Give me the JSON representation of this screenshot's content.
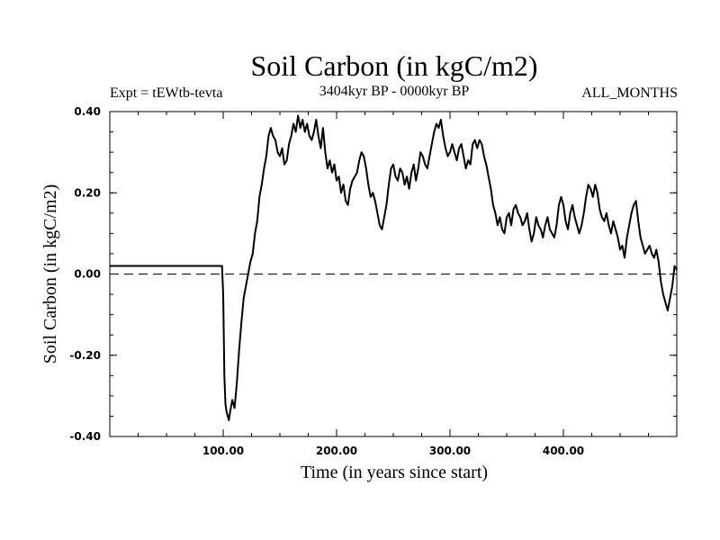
{
  "chart_data": {
    "type": "line",
    "title": "Soil Carbon (in kgC/m2)",
    "subtitle": "3404kyr BP - 0000kyr BP",
    "experiment_label": "Expt = tEWtb-tevta",
    "months_label": "ALL_MONTHS",
    "xlabel": "Time (in years since start)",
    "ylabel": "Soil Carbon (in kgC/m2)",
    "xlim": [
      0,
      500
    ],
    "ylim": [
      -0.4,
      0.4
    ],
    "x_ticks": [
      100,
      200,
      300,
      400
    ],
    "x_tick_labels": [
      "100.00",
      "200.00",
      "300.00",
      "400.00"
    ],
    "y_ticks": [
      -0.4,
      -0.2,
      0.0,
      0.2,
      0.4
    ],
    "y_tick_labels": [
      "-0.40",
      "-0.20",
      "0.00",
      "0.20",
      "0.40"
    ],
    "reference_line": {
      "y": 0.0,
      "style": "dashed"
    },
    "series": [
      {
        "name": "Soil Carbon",
        "color": "#000000",
        "x": [
          0,
          99,
          100,
          101,
          102,
          103,
          104,
          105,
          106,
          108,
          110,
          112,
          114,
          116,
          118,
          120,
          122,
          124,
          126,
          128,
          130,
          132,
          134,
          136,
          138,
          140,
          142,
          144,
          146,
          148,
          150,
          152,
          154,
          156,
          158,
          160,
          162,
          164,
          166,
          168,
          170,
          172,
          174,
          176,
          178,
          180,
          182,
          184,
          186,
          188,
          190,
          192,
          194,
          196,
          198,
          200,
          202,
          204,
          206,
          208,
          210,
          212,
          214,
          216,
          218,
          220,
          222,
          224,
          226,
          228,
          230,
          232,
          234,
          236,
          238,
          240,
          242,
          244,
          246,
          248,
          250,
          252,
          254,
          256,
          258,
          260,
          262,
          264,
          266,
          268,
          270,
          272,
          274,
          276,
          278,
          280,
          282,
          284,
          286,
          288,
          290,
          292,
          294,
          296,
          298,
          300,
          302,
          304,
          306,
          308,
          310,
          312,
          314,
          316,
          318,
          320,
          322,
          324,
          326,
          328,
          330,
          332,
          334,
          336,
          338,
          340,
          342,
          344,
          346,
          348,
          350,
          352,
          354,
          356,
          358,
          360,
          362,
          364,
          366,
          368,
          370,
          372,
          374,
          376,
          378,
          380,
          382,
          384,
          386,
          388,
          390,
          392,
          394,
          396,
          398,
          400,
          402,
          404,
          406,
          408,
          410,
          412,
          414,
          416,
          418,
          420,
          422,
          424,
          426,
          428,
          430,
          432,
          434,
          436,
          438,
          440,
          442,
          444,
          446,
          448,
          450,
          452,
          454,
          456,
          458,
          460,
          462,
          464,
          466,
          468,
          470,
          472,
          474,
          476,
          478,
          480,
          482,
          484,
          486,
          488,
          490,
          492,
          494,
          496,
          498,
          500
        ],
        "values": [
          0.02,
          0.02,
          -0.05,
          -0.25,
          -0.32,
          -0.34,
          -0.35,
          -0.36,
          -0.34,
          -0.31,
          -0.33,
          -0.27,
          -0.19,
          -0.12,
          -0.06,
          -0.03,
          0.0,
          0.03,
          0.05,
          0.1,
          0.13,
          0.19,
          0.22,
          0.26,
          0.29,
          0.34,
          0.36,
          0.34,
          0.33,
          0.3,
          0.29,
          0.31,
          0.27,
          0.28,
          0.32,
          0.34,
          0.37,
          0.35,
          0.39,
          0.36,
          0.38,
          0.35,
          0.37,
          0.34,
          0.33,
          0.35,
          0.38,
          0.34,
          0.31,
          0.36,
          0.3,
          0.26,
          0.28,
          0.25,
          0.27,
          0.23,
          0.24,
          0.2,
          0.22,
          0.18,
          0.17,
          0.21,
          0.23,
          0.24,
          0.25,
          0.28,
          0.3,
          0.29,
          0.26,
          0.22,
          0.19,
          0.2,
          0.18,
          0.15,
          0.12,
          0.11,
          0.14,
          0.17,
          0.22,
          0.26,
          0.27,
          0.24,
          0.23,
          0.26,
          0.25,
          0.22,
          0.24,
          0.21,
          0.25,
          0.27,
          0.23,
          0.26,
          0.3,
          0.29,
          0.27,
          0.26,
          0.29,
          0.32,
          0.35,
          0.37,
          0.36,
          0.38,
          0.34,
          0.31,
          0.29,
          0.3,
          0.32,
          0.3,
          0.28,
          0.31,
          0.32,
          0.29,
          0.26,
          0.28,
          0.27,
          0.32,
          0.33,
          0.31,
          0.33,
          0.32,
          0.29,
          0.27,
          0.24,
          0.21,
          0.17,
          0.15,
          0.12,
          0.14,
          0.11,
          0.1,
          0.14,
          0.15,
          0.12,
          0.16,
          0.17,
          0.15,
          0.14,
          0.12,
          0.13,
          0.15,
          0.11,
          0.08,
          0.1,
          0.14,
          0.12,
          0.11,
          0.09,
          0.12,
          0.14,
          0.11,
          0.1,
          0.09,
          0.12,
          0.17,
          0.19,
          0.17,
          0.13,
          0.11,
          0.15,
          0.17,
          0.14,
          0.12,
          0.1,
          0.12,
          0.15,
          0.19,
          0.22,
          0.21,
          0.19,
          0.22,
          0.2,
          0.16,
          0.14,
          0.13,
          0.15,
          0.12,
          0.1,
          0.13,
          0.11,
          0.09,
          0.06,
          0.07,
          0.04,
          0.09,
          0.12,
          0.15,
          0.17,
          0.18,
          0.13,
          0.09,
          0.07,
          0.05,
          0.06,
          0.07,
          0.05,
          0.04,
          0.06,
          0.03,
          -0.02,
          -0.05,
          -0.07,
          -0.09,
          -0.06,
          -0.03,
          0.02,
          0.01
        ]
      }
    ]
  }
}
